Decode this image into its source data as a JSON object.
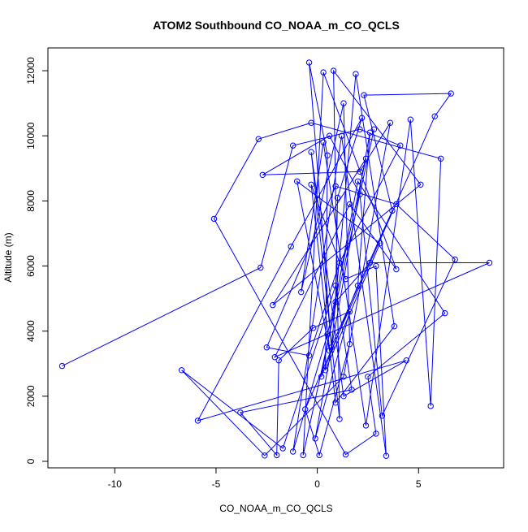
{
  "chart_data": {
    "type": "line",
    "title": "ATOM2 Southbound CO_NOAA_m_CO_QCLS",
    "xlabel": "CO_NOAA_m_CO_QCLS",
    "ylabel": "Altitude (m)",
    "xlim": [
      -13.3,
      9.2
    ],
    "ylim": [
      -200,
      12700
    ],
    "x_ticks": [
      -10,
      -5,
      0,
      5
    ],
    "x_tick_labels": [
      "-10",
      "-5",
      "0",
      "5"
    ],
    "y_ticks": [
      0,
      2000,
      4000,
      6000,
      8000,
      10000,
      12000
    ],
    "y_tick_labels": [
      "0",
      "2000",
      "4000",
      "6000",
      "8000",
      "10000",
      "12000"
    ],
    "grid": false,
    "series_color": "#0000ff",
    "marker": "open-circle",
    "series": [
      {
        "points": [
          [
            -12.6,
            2930
          ],
          [
            -2.8,
            5950
          ],
          [
            -1.2,
            9700
          ],
          [
            2.1,
            10200
          ],
          [
            4.1,
            9700
          ],
          [
            1.1,
            6100
          ],
          [
            -0.4,
            3250
          ],
          [
            -2.5,
            3500
          ],
          [
            0.9,
            8450
          ],
          [
            3.9,
            7900
          ],
          [
            6.8,
            6200
          ],
          [
            3.2,
            1400
          ],
          [
            2.1,
            8200
          ],
          [
            0.6,
            10000
          ],
          [
            -2.7,
            8800
          ],
          [
            2.1,
            8900
          ],
          [
            3.6,
            10400
          ],
          [
            1.3,
            2600
          ],
          [
            -2.6,
            180
          ],
          [
            -6.7,
            2800
          ],
          [
            -1.7,
            400
          ],
          [
            0.9,
            5400
          ],
          [
            1.7,
            2200
          ],
          [
            -3.8,
            1500
          ],
          [
            -2.0,
            190
          ],
          [
            -1.9,
            3100
          ],
          [
            -0.2,
            4100
          ],
          [
            1.6,
            4600
          ],
          [
            -0.1,
            700
          ],
          [
            2.6,
            10100
          ],
          [
            2.0,
            5400
          ],
          [
            0.2,
            2600
          ],
          [
            2.0,
            8600
          ],
          [
            6.3,
            4550
          ],
          [
            2.5,
            2600
          ],
          [
            2.9,
            850
          ],
          [
            1.4,
            210
          ],
          [
            -5.1,
            7450
          ],
          [
            -2.9,
            9900
          ],
          [
            -0.3,
            10400
          ],
          [
            6.1,
            9300
          ],
          [
            5.6,
            1700
          ],
          [
            4.6,
            10500
          ],
          [
            2.4,
            1100
          ],
          [
            0.3,
            9800
          ],
          [
            -0.8,
            5200
          ],
          [
            1.3,
            11000
          ],
          [
            1.6,
            3600
          ],
          [
            0.1,
            190
          ],
          [
            -0.6,
            1600
          ],
          [
            5.8,
            10600
          ],
          [
            6.6,
            11300
          ],
          [
            2.3,
            11250
          ],
          [
            3.7,
            7700
          ],
          [
            0.6,
            3400
          ],
          [
            -1.0,
            8600
          ],
          [
            3.1,
            6700
          ],
          [
            0.4,
            2800
          ],
          [
            0.5,
            9400
          ],
          [
            -0.4,
            12250
          ],
          [
            0.7,
            3500
          ],
          [
            1.9,
            11900
          ],
          [
            3.8,
            4150
          ],
          [
            0.9,
            1800
          ],
          [
            -0.3,
            8500
          ],
          [
            1.4,
            5600
          ],
          [
            2.9,
            6000
          ],
          [
            3.4,
            170
          ],
          [
            1.2,
            10000
          ],
          [
            -1.2,
            300
          ],
          [
            0.5,
            3900
          ],
          [
            2.4,
            9300
          ],
          [
            -2.2,
            4800
          ],
          [
            5.1,
            8500
          ],
          [
            0.8,
            12000
          ],
          [
            1.1,
            1300
          ],
          [
            -0.3,
            9500
          ],
          [
            1.3,
            2000
          ],
          [
            4.4,
            3100
          ],
          [
            -5.9,
            1250
          ],
          [
            -1.3,
            6600
          ],
          [
            2.2,
            10550
          ],
          [
            1.0,
            8100
          ],
          [
            0.9,
            4900
          ],
          [
            2.6,
            6100
          ],
          [
            8.5,
            6100
          ],
          [
            -2.1,
            3200
          ],
          [
            1.6,
            7900
          ],
          [
            3.9,
            5900
          ],
          [
            0.3,
            11950
          ],
          [
            -0.7,
            190
          ],
          [
            2.8,
            10200
          ]
        ]
      }
    ]
  }
}
